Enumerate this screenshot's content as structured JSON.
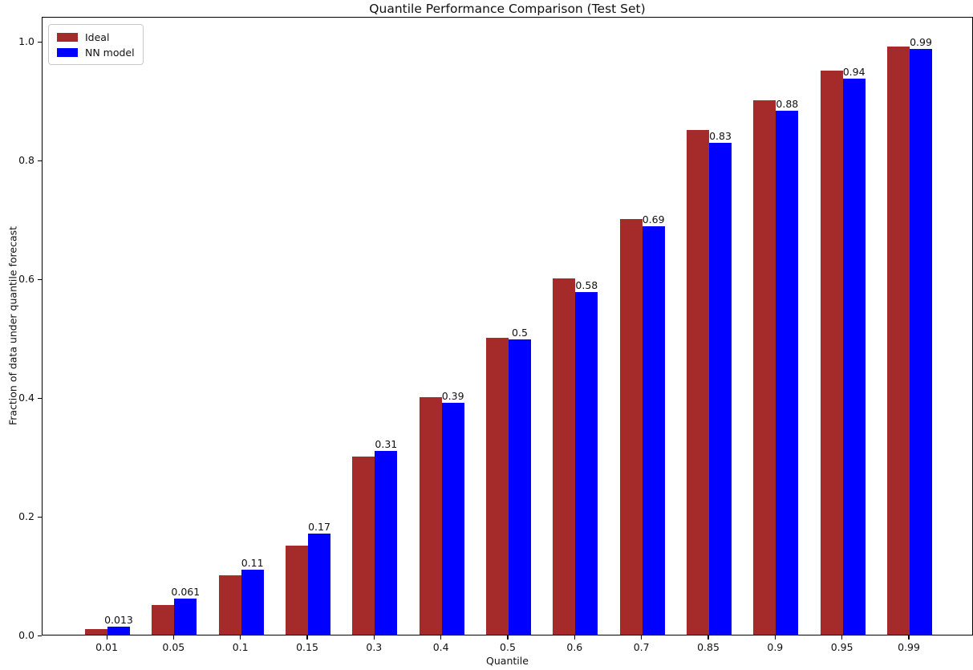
{
  "chart_data": {
    "type": "bar",
    "title": "Quantile Performance Comparison (Test Set)",
    "xlabel": "Quantile",
    "ylabel": "Fraction of data under quantile forecast",
    "categories": [
      "0.01",
      "0.05",
      "0.1",
      "0.15",
      "0.3",
      "0.4",
      "0.5",
      "0.6",
      "0.7",
      "0.85",
      "0.9",
      "0.95",
      "0.99"
    ],
    "series": [
      {
        "name": "Ideal",
        "color": "#a52a2a",
        "values": [
          0.01,
          0.05,
          0.1,
          0.15,
          0.3,
          0.4,
          0.5,
          0.6,
          0.7,
          0.85,
          0.9,
          0.95,
          0.99
        ]
      },
      {
        "name": "NN model",
        "color": "#0000ff",
        "values": [
          0.013,
          0.061,
          0.11,
          0.17,
          0.31,
          0.39,
          0.5,
          0.58,
          0.69,
          0.83,
          0.88,
          0.94,
          0.99
        ],
        "values_rendered": [
          0.013,
          0.061,
          0.11,
          0.17,
          0.31,
          0.39,
          0.497,
          0.577,
          0.688,
          0.829,
          0.883,
          0.937,
          0.987
        ]
      }
    ],
    "bar_labels": [
      "0.013",
      "0.061",
      "0.11",
      "0.17",
      "0.31",
      "0.39",
      "0.5",
      "0.58",
      "0.69",
      "0.83",
      "0.88",
      "0.94",
      "0.99"
    ],
    "yticks": [
      "0.0",
      "0.2",
      "0.4",
      "0.6",
      "0.8",
      "1.0"
    ],
    "ylim": [
      0,
      1.04
    ],
    "grid": false,
    "legend_position": "upper left"
  }
}
